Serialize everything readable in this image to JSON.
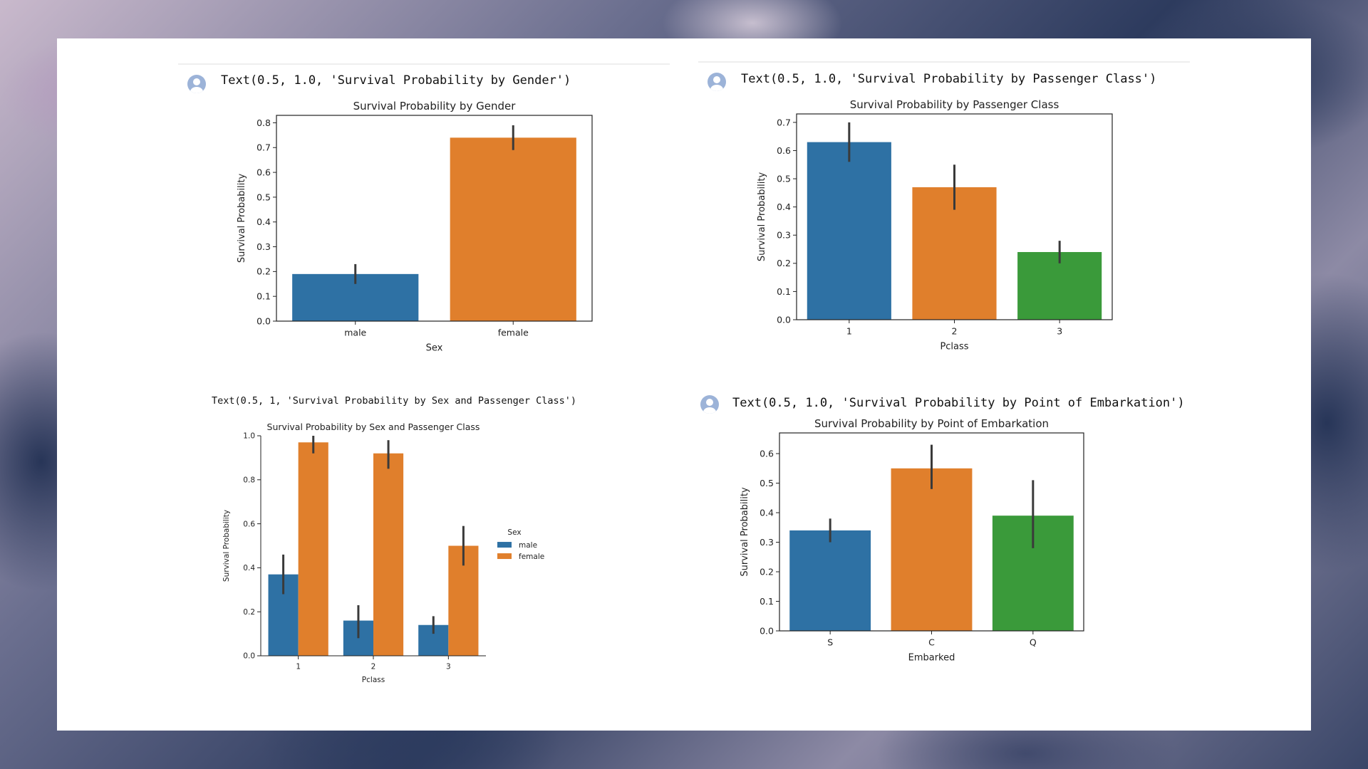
{
  "outputs": [
    "Text(0.5, 1.0, 'Survival Probability by Gender')",
    "Text(0.5, 1.0, 'Survival Probability by Passenger Class')",
    "Text(0.5, 1, 'Survival Probability by Sex and Passenger Class')",
    "Text(0.5, 1.0, 'Survival Probability by Point of Embarkation')"
  ],
  "colors": {
    "blue": "#2e71a4",
    "orange": "#e07f2c",
    "green": "#3a9a3a",
    "error": "#3a3a3a"
  },
  "icons": {
    "output_avatar": "user-avatar-icon"
  },
  "chart_data": [
    {
      "type": "bar",
      "title": "Survival Probability by Gender",
      "xlabel": "Sex",
      "ylabel": "Survival Probability",
      "categories": [
        "male",
        "female"
      ],
      "values": [
        0.19,
        0.74
      ],
      "errors": [
        [
          0.15,
          0.23
        ],
        [
          0.69,
          0.79
        ]
      ],
      "colors": [
        "#2e71a4",
        "#e07f2c"
      ],
      "ylim": [
        0,
        0.83
      ],
      "yticks": [
        0.0,
        0.1,
        0.2,
        0.3,
        0.4,
        0.5,
        0.6,
        0.7,
        0.8
      ],
      "ytick_labels": [
        "0.0",
        "0.1",
        "0.2",
        "0.3",
        "0.4",
        "0.5",
        "0.6",
        "0.7",
        "0.8"
      ],
      "grid": false
    },
    {
      "type": "bar",
      "title": "Survival Probability by Passenger Class",
      "xlabel": "Pclass",
      "ylabel": "Survival Probability",
      "categories": [
        "1",
        "2",
        "3"
      ],
      "values": [
        0.63,
        0.47,
        0.24
      ],
      "errors": [
        [
          0.56,
          0.7
        ],
        [
          0.39,
          0.55
        ],
        [
          0.2,
          0.28
        ]
      ],
      "colors": [
        "#2e71a4",
        "#e07f2c",
        "#3a9a3a"
      ],
      "ylim": [
        0,
        0.73
      ],
      "yticks": [
        0.0,
        0.1,
        0.2,
        0.3,
        0.4,
        0.5,
        0.6,
        0.7
      ],
      "ytick_labels": [
        "0.0",
        "0.1",
        "0.2",
        "0.3",
        "0.4",
        "0.5",
        "0.6",
        "0.7"
      ],
      "grid": false
    },
    {
      "type": "bar",
      "title": "Survival Probability by Sex and Passenger Class",
      "xlabel": "Pclass",
      "ylabel": "Survival Probability",
      "categories": [
        "1",
        "2",
        "3"
      ],
      "series": [
        {
          "name": "male",
          "color": "#2e71a4",
          "values": [
            0.37,
            0.16,
            0.14
          ],
          "errors": [
            [
              0.28,
              0.46
            ],
            [
              0.08,
              0.23
            ],
            [
              0.1,
              0.18
            ]
          ]
        },
        {
          "name": "female",
          "color": "#e07f2c",
          "values": [
            0.97,
            0.92,
            0.5
          ],
          "errors": [
            [
              0.92,
              1.0
            ],
            [
              0.85,
              0.98
            ],
            [
              0.41,
              0.59
            ]
          ]
        }
      ],
      "legend_title": "Sex",
      "legend_position": "right",
      "ylim": [
        0,
        1.0
      ],
      "yticks": [
        0.0,
        0.2,
        0.4,
        0.6,
        0.8,
        1.0
      ],
      "ytick_labels": [
        "0.0",
        "0.2",
        "0.4",
        "0.6",
        "0.8",
        "1.0"
      ],
      "grid": false
    },
    {
      "type": "bar",
      "title": "Survival Probability by Point of Embarkation",
      "xlabel": "Embarked",
      "ylabel": "Survival Probability",
      "categories": [
        "S",
        "C",
        "Q"
      ],
      "values": [
        0.34,
        0.55,
        0.39
      ],
      "errors": [
        [
          0.3,
          0.38
        ],
        [
          0.48,
          0.63
        ],
        [
          0.28,
          0.51
        ]
      ],
      "colors": [
        "#2e71a4",
        "#e07f2c",
        "#3a9a3a"
      ],
      "ylim": [
        0,
        0.67
      ],
      "yticks": [
        0.0,
        0.1,
        0.2,
        0.3,
        0.4,
        0.5,
        0.6
      ],
      "ytick_labels": [
        "0.0",
        "0.1",
        "0.2",
        "0.3",
        "0.4",
        "0.5",
        "0.6"
      ],
      "grid": false
    }
  ]
}
